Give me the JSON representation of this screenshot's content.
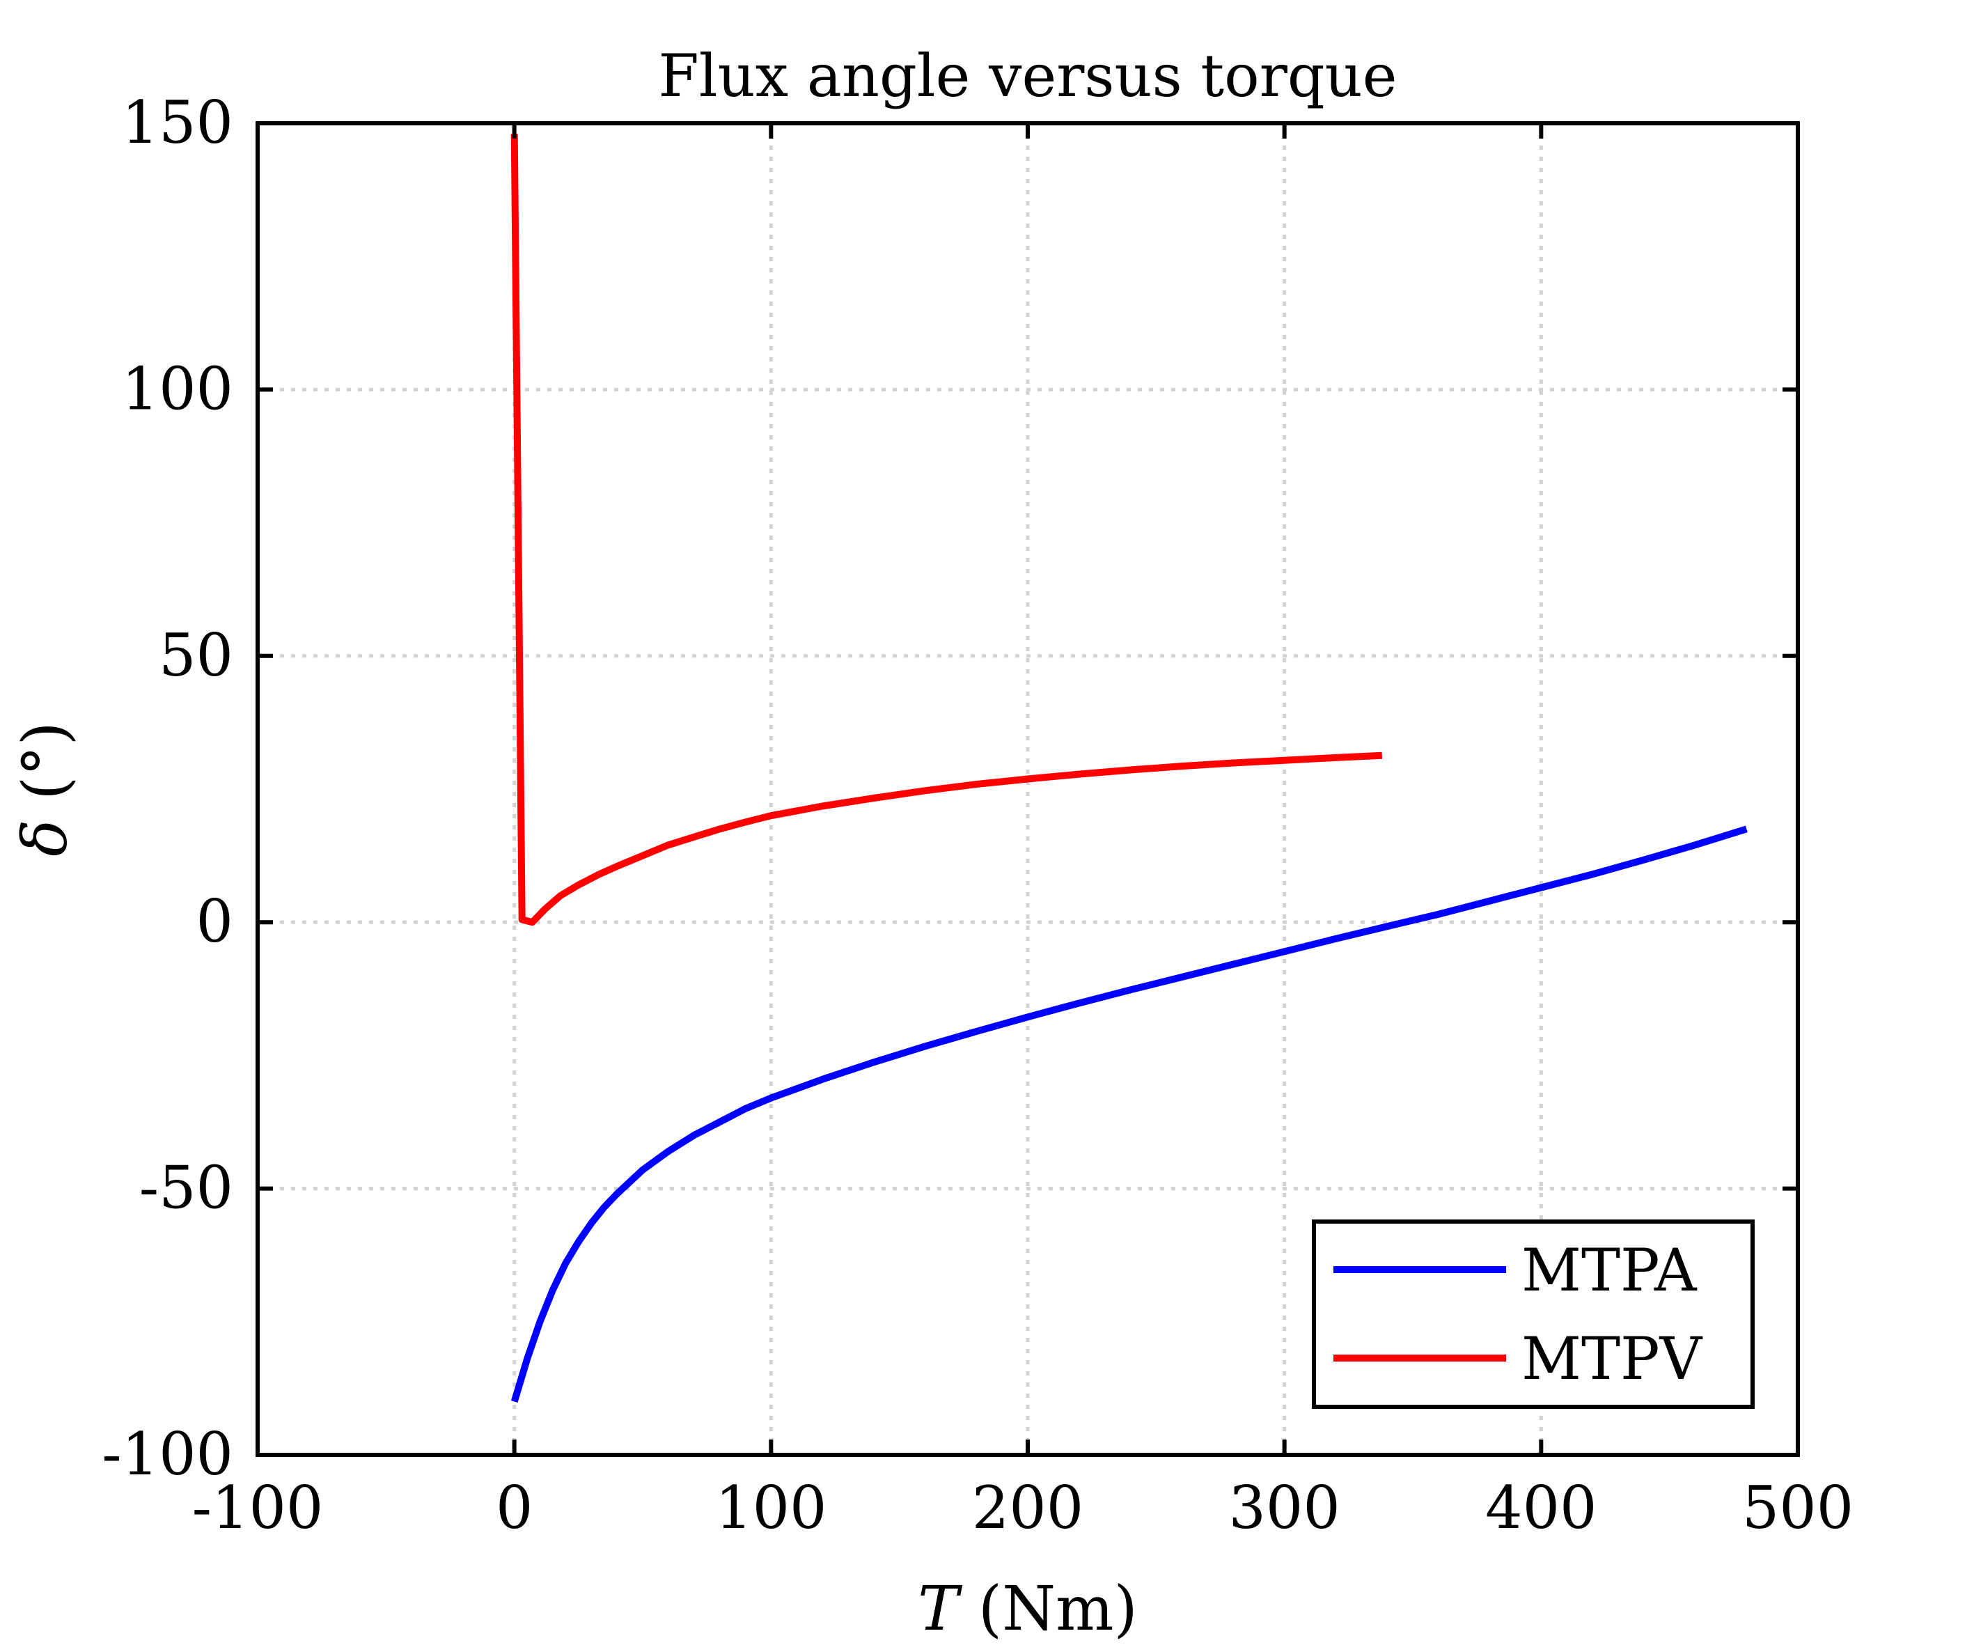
{
  "chart_data": {
    "type": "line",
    "title": "Flux angle versus torque",
    "xlabel_var": "T",
    "xlabel_unit": " (Nm)",
    "ylabel_var": "δ",
    "ylabel_unit": " (°)",
    "xlim": [
      -100,
      500
    ],
    "ylim": [
      -100,
      150
    ],
    "xticks": [
      -100,
      0,
      100,
      200,
      300,
      400,
      500
    ],
    "yticks": [
      -100,
      -50,
      0,
      50,
      100,
      150
    ],
    "grid": true,
    "legend_position": "bottom-right",
    "series": [
      {
        "name": "MTPA",
        "color": "#0000ff",
        "x": [
          0,
          5,
          10,
          15,
          20,
          25,
          30,
          35,
          40,
          50,
          60,
          70,
          80,
          90,
          100,
          120,
          140,
          160,
          180,
          200,
          220,
          240,
          260,
          280,
          300,
          320,
          340,
          360,
          380,
          400,
          420,
          440,
          460,
          480
        ],
        "y": [
          -90,
          -82,
          -75,
          -69,
          -64,
          -60,
          -56.5,
          -53.5,
          -51,
          -46.5,
          -43,
          -40,
          -37.5,
          -35,
          -33,
          -29.5,
          -26.3,
          -23.3,
          -20.5,
          -17.8,
          -15.2,
          -12.7,
          -10.3,
          -7.9,
          -5.5,
          -3.1,
          -0.8,
          1.5,
          4,
          6.5,
          9,
          11.7,
          14.5,
          17.5
        ]
      },
      {
        "name": "MTPV",
        "color": "#ff0000",
        "x": [
          0,
          3,
          7,
          12,
          18,
          25,
          33,
          40,
          50,
          60,
          70,
          80,
          90,
          100,
          120,
          140,
          160,
          180,
          200,
          220,
          240,
          260,
          280,
          300,
          320,
          338
        ],
        "y": [
          148,
          0.5,
          0,
          2.5,
          5,
          7,
          9,
          10.5,
          12.5,
          14.5,
          16,
          17.5,
          18.8,
          20,
          21.8,
          23.3,
          24.7,
          25.9,
          26.9,
          27.8,
          28.6,
          29.3,
          29.9,
          30.4,
          30.9,
          31.3
        ]
      }
    ]
  }
}
